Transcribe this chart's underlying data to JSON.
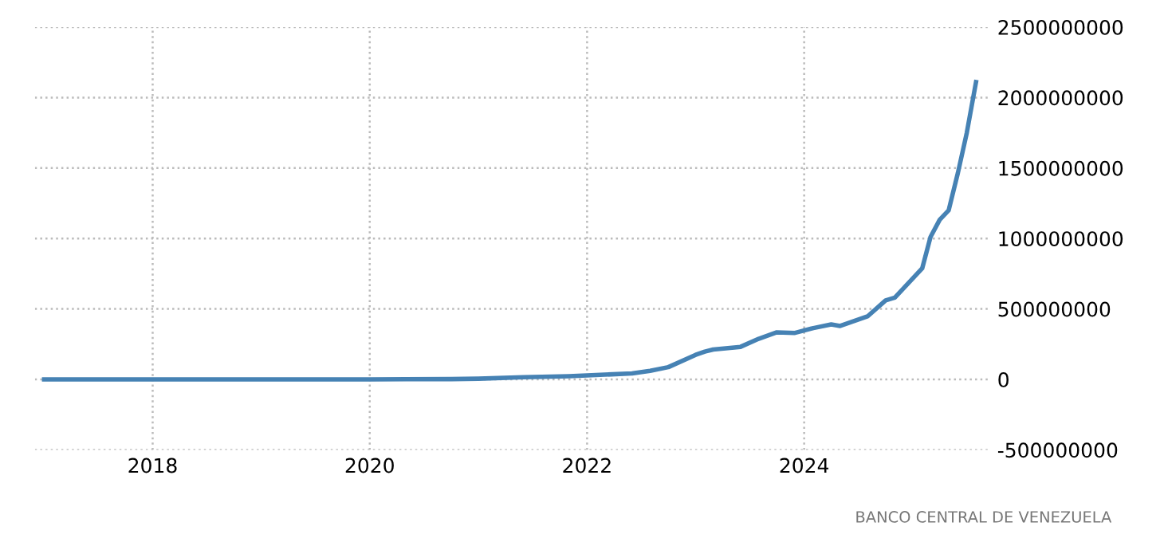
{
  "chart_data": {
    "type": "line",
    "x": [
      "2017-01",
      "2018-01",
      "2019-01",
      "2020-01",
      "2020-10",
      "2021-01",
      "2021-06",
      "2021-11",
      "2022-06",
      "2022-08",
      "2022-10",
      "2023-01",
      "2023-02",
      "2023-03",
      "2023-06",
      "2023-08",
      "2023-10",
      "2023-12",
      "2024-02",
      "2024-04",
      "2024-05",
      "2024-08",
      "2024-10",
      "2024-11",
      "2025-02",
      "2025-03",
      "2025-04",
      "2025-05",
      "2025-06",
      "2025-07",
      "2025-08"
    ],
    "series": [
      {
        "color": "#4682b4",
        "values": [
          0,
          0,
          0,
          0,
          2000000,
          5000000,
          15000000,
          23000000,
          42000000,
          61000000,
          87000000,
          174000000,
          197000000,
          212000000,
          231000000,
          288000000,
          334000000,
          330000000,
          364000000,
          390000000,
          379000000,
          447000000,
          561000000,
          580000000,
          788000000,
          1011000000,
          1133000000,
          1200000000,
          1465000000,
          1750000000,
          2110000000
        ]
      }
    ],
    "xlim": [
      "2016-12-01",
      "2025-09-15"
    ],
    "xticks": [
      {
        "value": "2018-01-01",
        "label": "2018"
      },
      {
        "value": "2020-01-01",
        "label": "2020"
      },
      {
        "value": "2022-01-01",
        "label": "2022"
      },
      {
        "value": "2024-01-01",
        "label": "2024"
      }
    ],
    "ylim": [
      -500000000,
      2500000000
    ],
    "yticks": [
      -500000000,
      0,
      500000000,
      1000000000,
      1500000000,
      2000000000,
      2500000000
    ],
    "grid": true,
    "marker": "none",
    "line_style": "solid",
    "annotations": [
      "BANCO CENTRAL DE VENEZUELA"
    ]
  }
}
